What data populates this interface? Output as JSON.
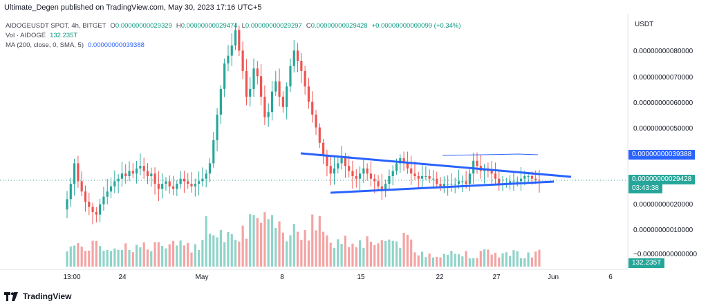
{
  "publisher_line": "Ultimate_Degen published on TradingView.com, May 30, 2023 17:16 UTC+5",
  "legend": {
    "symbol": "AIDOGEUSDT SPOT, 4h, BITGET",
    "open_label": "O",
    "open": "0.00000000029329",
    "high_label": "H",
    "high": "0.00000000029474",
    "low_label": "L",
    "low": "0.00000000029297",
    "close_label": "C",
    "close": "0.00000000029428",
    "change": "+0.00000000000099 (+0.34%)",
    "vol_label": "Vol · AIDOGE",
    "vol_value": "132.235T",
    "ma_label": "MA (200, close, 0, SMA, 5)",
    "ma_value": "0.00000000039388"
  },
  "price_axis": {
    "currency": "USDT",
    "ticks": [
      "0.00000000080000",
      "0.00000000070000",
      "0.00000000060000",
      "0.00000000050000",
      "0.00000000020000",
      "0.00000000010000",
      "−0.00000000000000"
    ]
  },
  "tags": {
    "ma": "0.00000000039388",
    "price": "0.00000000029428",
    "countdown": "03:43:38",
    "volume": "132.235T"
  },
  "time_axis": [
    "13:00",
    "24",
    "May",
    "8",
    "15",
    "22",
    "27",
    "Jun",
    "6"
  ],
  "colors": {
    "up": "#26a69a",
    "down": "#ef5350",
    "ma": "#2962ff",
    "trendline": "#2962ff",
    "vol_up": "#8fd3c9",
    "vol_down": "#f4a3a3"
  },
  "brand": "TradingView",
  "chart_data": {
    "type": "candlestick",
    "interval": "4h",
    "unit": "USDT",
    "ylim": [
      0,
      8.8e-10
    ],
    "closes_e10": [
      2.2,
      2.8,
      3.6,
      2.9,
      2.5,
      2.1,
      1.9,
      1.7,
      1.6,
      2.0,
      2.3,
      2.5,
      2.7,
      2.9,
      3.0,
      3.2,
      3.1,
      3.3,
      3.2,
      3.4,
      3.5,
      3.3,
      3.1,
      3.2,
      2.8,
      2.6,
      2.8,
      2.9,
      2.7,
      2.6,
      2.8,
      3.0,
      2.9,
      2.8,
      2.7,
      2.8,
      2.9,
      3.0,
      3.2,
      3.6,
      4.5,
      5.5,
      6.5,
      7.5,
      7.8,
      8.2,
      8.8,
      8.0,
      7.2,
      6.2,
      6.5,
      7.3,
      7.0,
      6.2,
      5.4,
      5.6,
      6.4,
      6.8,
      6.2,
      5.8,
      6.6,
      7.4,
      8.0,
      7.6,
      7.2,
      6.6,
      6.0,
      5.5,
      5.0,
      4.4,
      3.9,
      3.5,
      3.2,
      3.4,
      3.6,
      3.8,
      3.5,
      3.3,
      3.1,
      3.0,
      3.2,
      3.4,
      3.2,
      3.0,
      2.9,
      2.7,
      2.6,
      2.8,
      3.1,
      3.3,
      3.6,
      3.8,
      3.6,
      3.4,
      3.2,
      3.1,
      3.0,
      3.1,
      3.1,
      3.0,
      3.0,
      2.8,
      2.7,
      2.8,
      2.8,
      2.8,
      2.8,
      2.9,
      2.9,
      2.8,
      3.2,
      3.7,
      3.5,
      3.3,
      3.4,
      3.3,
      3.2,
      3.0,
      2.8,
      2.8,
      2.8,
      2.9,
      2.9,
      2.9,
      3.0,
      3.1,
      3.1,
      3.0,
      2.95,
      2.94
    ]
  }
}
